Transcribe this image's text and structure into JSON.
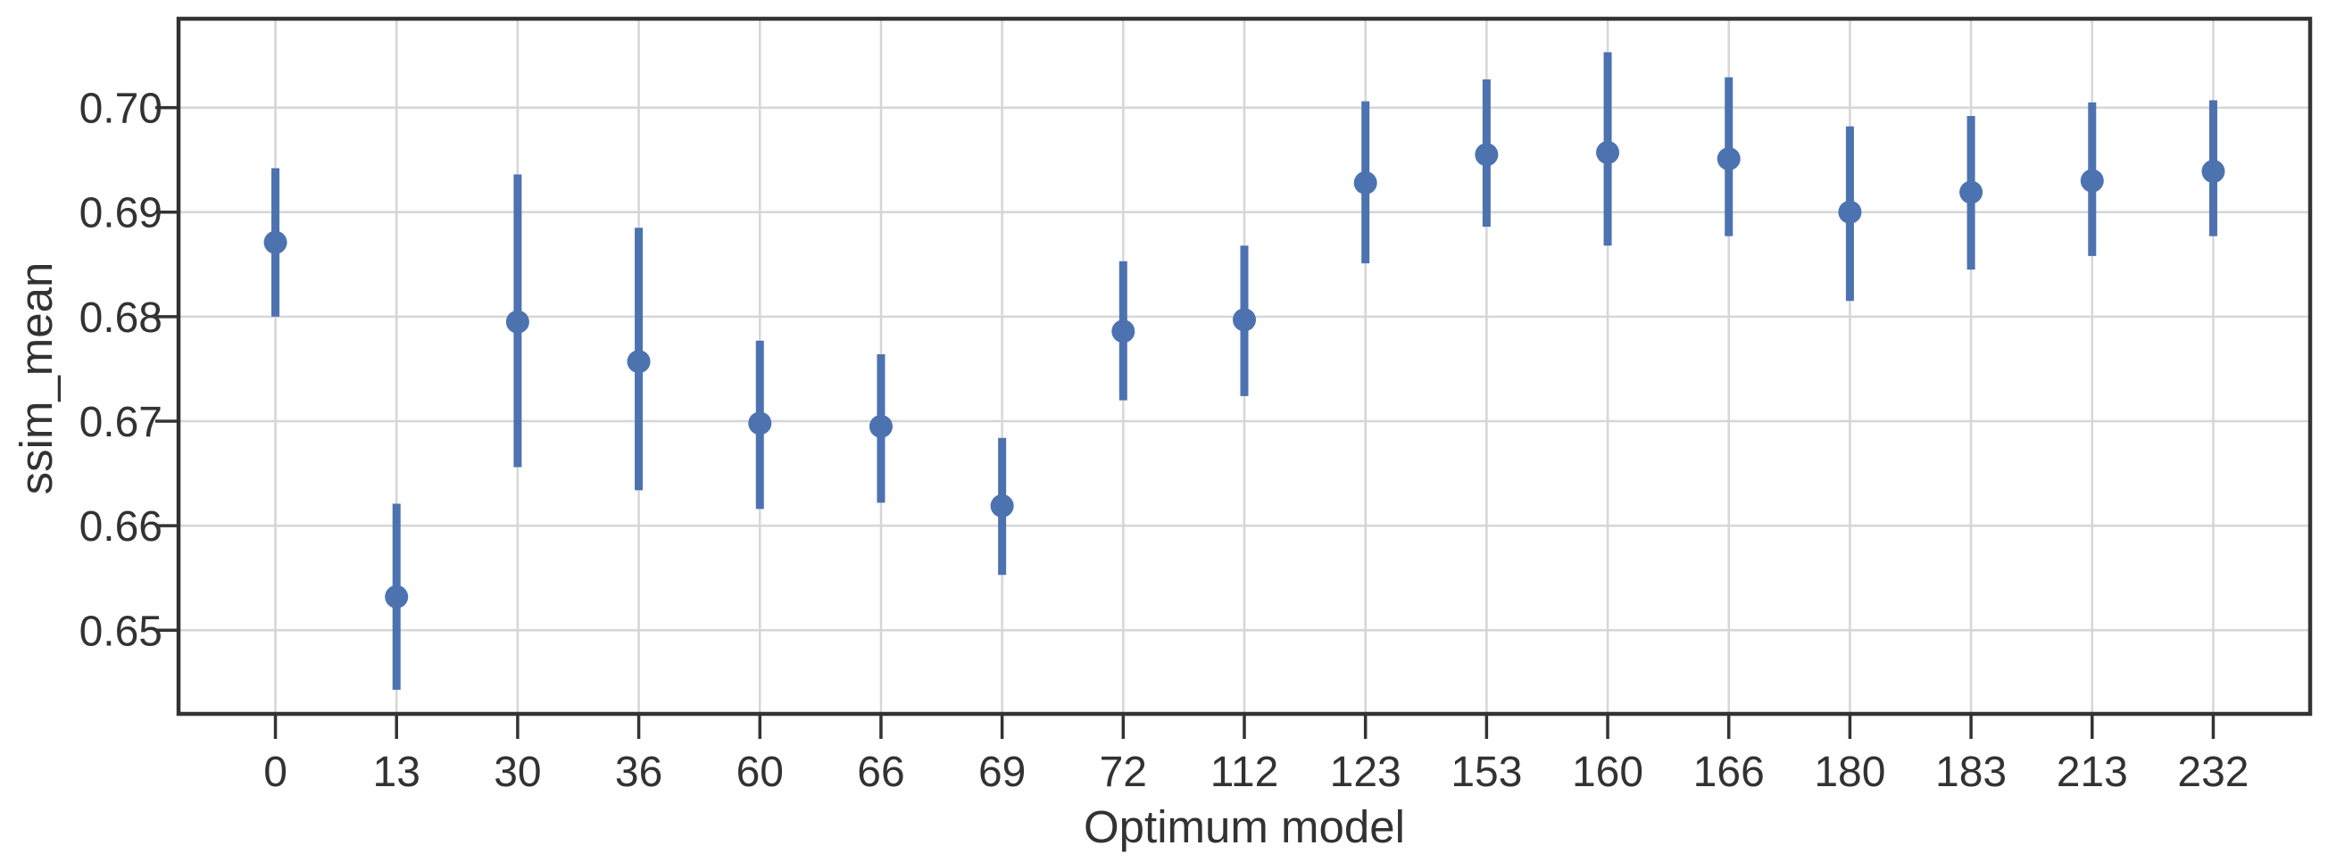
{
  "figure": {
    "background": "#ffffff"
  },
  "chart_data": {
    "type": "scatter",
    "subtype": "pointplot-with-error-bars",
    "title": "",
    "xlabel": "Optimum model",
    "ylabel": "ssim_mean",
    "categories": [
      "0",
      "13",
      "30",
      "36",
      "60",
      "66",
      "69",
      "72",
      "112",
      "123",
      "153",
      "160",
      "166",
      "180",
      "183",
      "213",
      "232"
    ],
    "series": [
      {
        "name": "ssim_mean",
        "values": [
          0.6871,
          0.6532,
          0.6795,
          0.6757,
          0.6698,
          0.6695,
          0.6619,
          0.6786,
          0.6797,
          0.6928,
          0.6955,
          0.6957,
          0.6951,
          0.69,
          0.6919,
          0.693,
          0.6939
        ],
        "ci_low": [
          0.68,
          0.6443,
          0.6656,
          0.6634,
          0.6616,
          0.6622,
          0.6553,
          0.672,
          0.6724,
          0.6851,
          0.6886,
          0.6868,
          0.6877,
          0.6815,
          0.6845,
          0.6858,
          0.6877
        ],
        "ci_high": [
          0.6942,
          0.6621,
          0.6936,
          0.6885,
          0.6777,
          0.6764,
          0.6684,
          0.6853,
          0.6868,
          0.7006,
          0.7027,
          0.7053,
          0.7029,
          0.6982,
          0.6992,
          0.7005,
          0.7007
        ]
      }
    ],
    "yticks": [
      0.65,
      0.66,
      0.67,
      0.68,
      0.69,
      0.7
    ],
    "ytick_labels": [
      "0.65",
      "0.66",
      "0.67",
      "0.68",
      "0.69",
      "0.70"
    ],
    "ylim": [
      0.642,
      0.7085
    ],
    "x_edge_margin_units": 0.8,
    "grid": true,
    "legend_position": "none",
    "colors": {
      "point": "#4C72B0",
      "error_bar": "#4C72B0",
      "grid": "#d6d6d6",
      "spine": "#333333",
      "tick": "#333333",
      "text": "#323232"
    }
  }
}
